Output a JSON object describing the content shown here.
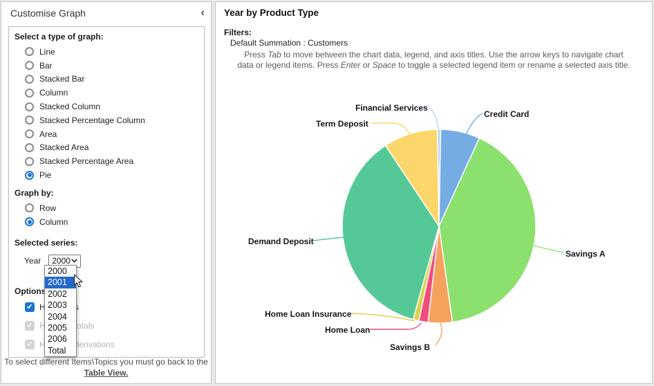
{
  "left_panel": {
    "title": "Customise Graph",
    "collapse_icon": "chevron-left",
    "graph_type_heading": "Select a type of graph:",
    "graph_types": [
      "Line",
      "Bar",
      "Stacked Bar",
      "Column",
      "Stacked Column",
      "Stacked Percentage Column",
      "Area",
      "Stacked Area",
      "Stacked Percentage Area",
      "Pie"
    ],
    "selected_graph_type": "Pie",
    "graph_by_heading": "Graph by:",
    "graph_by_options": [
      "Row",
      "Column"
    ],
    "selected_graph_by": "Column",
    "selected_series_heading": "Selected series:",
    "year_label": "Year",
    "year_value": "2000",
    "year_dropdown": {
      "options": [
        "2000",
        "2001",
        "2002",
        "2003",
        "2004",
        "2005",
        "2006",
        "Total"
      ],
      "highlighted": "2001"
    },
    "options_heading": "Options:",
    "options": [
      {
        "label": "Hide totals",
        "checked": true,
        "disabled": false
      },
      {
        "label": "Hide row totals",
        "checked": true,
        "disabled": true
      },
      {
        "label": "Hide row derivations",
        "checked": true,
        "disabled": true
      }
    ],
    "footer_text": "To select different Items\\Topics you must go back to the",
    "footer_link": "Table View."
  },
  "right_panel": {
    "title": "Year by Product Type",
    "filters_label": "Filters:",
    "filters_value": "Default Summation : Customers",
    "instructions": {
      "p1": "Press ",
      "kw1": "Tab",
      "p2": " to move between the chart data, legend, and axis titles. Use the arrow keys to navigate chart data or legend items. Press ",
      "kw2": "Enter",
      "p3": " or ",
      "kw3": "Space",
      "p4": " to toggle a selected legend item or rename a selected axis title."
    }
  },
  "chart_data": {
    "type": "pie",
    "title": "Year by Product Type",
    "series_name": "2000",
    "summation": "Customers",
    "start_angle_deg": -1,
    "legend_position": "none",
    "slices": [
      {
        "label": "Financial Services",
        "percent": 0.56,
        "color": "#b9d4f2"
      },
      {
        "label": "Credit Card",
        "percent": 6.56,
        "color": "#76ace4"
      },
      {
        "label": "Savings A",
        "percent": 40.94,
        "color": "#8ce06e"
      },
      {
        "label": "Savings B",
        "percent": 4.03,
        "color": "#f5a25d"
      },
      {
        "label": "Home Loan",
        "percent": 1.53,
        "color": "#ee4d7e"
      },
      {
        "label": "Home Loan Insurance",
        "percent": 0.97,
        "color": "#ddd04e"
      },
      {
        "label": "Demand Deposit",
        "percent": 36.36,
        "color": "#54c997"
      },
      {
        "label": "Term Deposit",
        "percent": 9.06,
        "color": "#fbd76b"
      }
    ]
  }
}
